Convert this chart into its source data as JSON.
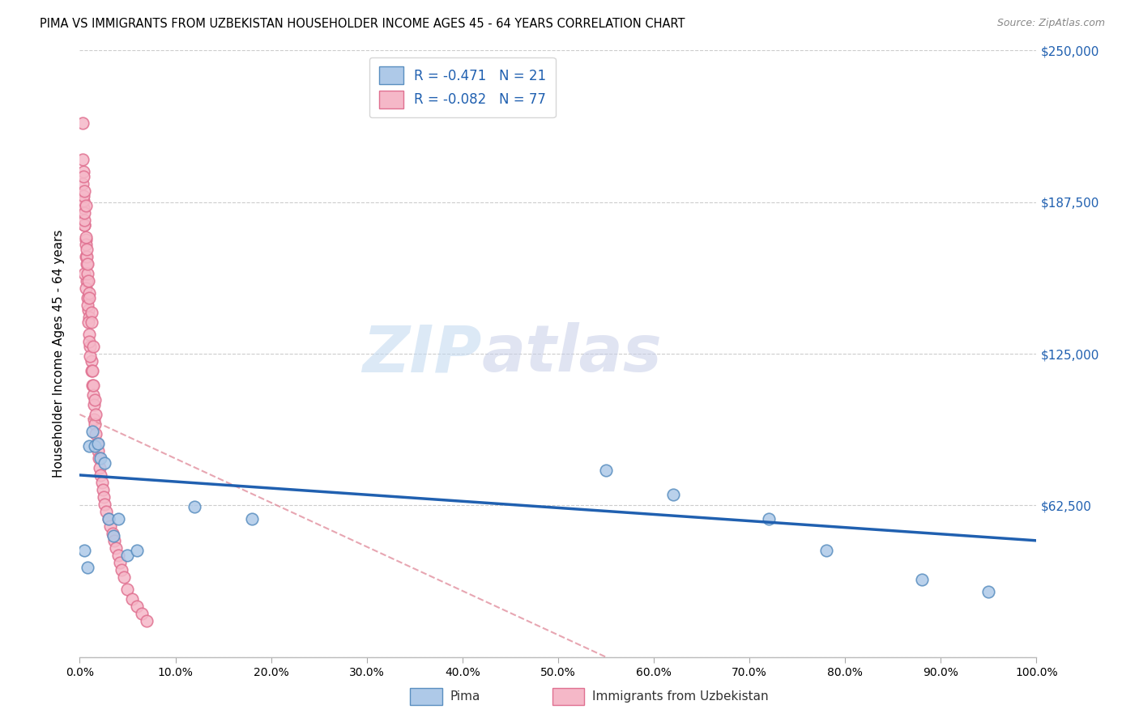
{
  "title": "PIMA VS IMMIGRANTS FROM UZBEKISTAN HOUSEHOLDER INCOME AGES 45 - 64 YEARS CORRELATION CHART",
  "source": "Source: ZipAtlas.com",
  "ylabel": "Householder Income Ages 45 - 64 years",
  "xlim": [
    0,
    1.0
  ],
  "ylim": [
    0,
    250000
  ],
  "yticks": [
    0,
    62500,
    125000,
    187500,
    250000
  ],
  "ytick_labels": [
    "",
    "$62,500",
    "$125,000",
    "$187,500",
    "$250,000"
  ],
  "xtick_vals": [
    0.0,
    0.1,
    0.2,
    0.3,
    0.4,
    0.5,
    0.6,
    0.7,
    0.8,
    0.9,
    1.0
  ],
  "xtick_labels": [
    "0.0%",
    "10.0%",
    "20.0%",
    "30.0%",
    "40.0%",
    "50.0%",
    "60.0%",
    "70.0%",
    "80.0%",
    "90.0%",
    "100.0%"
  ],
  "pima_color": "#aec9e8",
  "uzbek_color": "#f5b8c8",
  "pima_edge_color": "#5a8fc0",
  "uzbek_edge_color": "#e07090",
  "trend_pima_color": "#2060b0",
  "trend_uzbek_color": "#e08898",
  "trend_pima_x0": 0.0,
  "trend_pima_y0": 75000,
  "trend_pima_x1": 1.0,
  "trend_pima_y1": 48000,
  "trend_uzbek_x0": 0.0,
  "trend_uzbek_y0": 100000,
  "trend_uzbek_x1": 0.55,
  "trend_uzbek_y1": 0,
  "legend_label_pima": "R = -0.471   N = 21",
  "legend_label_uzbek": "R = -0.082   N = 77",
  "bottom_label_pima": "Pima",
  "bottom_label_uzbek": "Immigrants from Uzbekistan",
  "watermark_zip": "ZIP",
  "watermark_atlas": "atlas",
  "pima_x": [
    0.005,
    0.008,
    0.01,
    0.013,
    0.016,
    0.019,
    0.022,
    0.026,
    0.03,
    0.035,
    0.04,
    0.05,
    0.06,
    0.12,
    0.18,
    0.55,
    0.62,
    0.72,
    0.78,
    0.88,
    0.95
  ],
  "pima_y": [
    44000,
    37000,
    87000,
    93000,
    87000,
    88000,
    82000,
    80000,
    57000,
    50000,
    57000,
    42000,
    44000,
    62000,
    57000,
    77000,
    67000,
    57000,
    44000,
    32000,
    27000
  ],
  "uzbek_x": [
    0.003,
    0.004,
    0.005,
    0.006,
    0.006,
    0.007,
    0.007,
    0.008,
    0.009,
    0.01,
    0.01,
    0.011,
    0.012,
    0.012,
    0.013,
    0.014,
    0.015,
    0.015,
    0.016,
    0.017,
    0.018,
    0.019,
    0.02,
    0.021,
    0.022,
    0.023,
    0.024,
    0.025,
    0.026,
    0.028,
    0.03,
    0.032,
    0.034,
    0.036,
    0.038,
    0.04,
    0.042,
    0.044,
    0.046,
    0.05,
    0.055,
    0.06,
    0.065,
    0.07,
    0.005,
    0.006,
    0.008,
    0.009,
    0.01,
    0.011,
    0.013,
    0.014,
    0.016,
    0.017,
    0.007,
    0.008,
    0.01,
    0.012,
    0.004,
    0.005,
    0.006,
    0.003,
    0.004,
    0.005,
    0.006,
    0.007,
    0.008,
    0.009,
    0.01,
    0.012,
    0.014,
    0.004,
    0.005,
    0.003,
    0.004,
    0.005,
    0.006
  ],
  "uzbek_y": [
    220000,
    200000,
    178000,
    172000,
    165000,
    162000,
    155000,
    148000,
    143000,
    140000,
    133000,
    128000,
    122000,
    118000,
    112000,
    108000,
    104000,
    98000,
    96000,
    92000,
    88000,
    85000,
    82000,
    78000,
    75000,
    72000,
    69000,
    66000,
    63000,
    60000,
    57000,
    54000,
    51000,
    48000,
    45000,
    42000,
    39000,
    36000,
    33000,
    28000,
    24000,
    21000,
    18000,
    15000,
    158000,
    152000,
    145000,
    138000,
    130000,
    124000,
    118000,
    112000,
    106000,
    100000,
    165000,
    158000,
    150000,
    142000,
    185000,
    178000,
    170000,
    195000,
    188000,
    180000,
    173000,
    168000,
    162000,
    155000,
    148000,
    138000,
    128000,
    190000,
    183000,
    205000,
    198000,
    192000,
    186000
  ]
}
